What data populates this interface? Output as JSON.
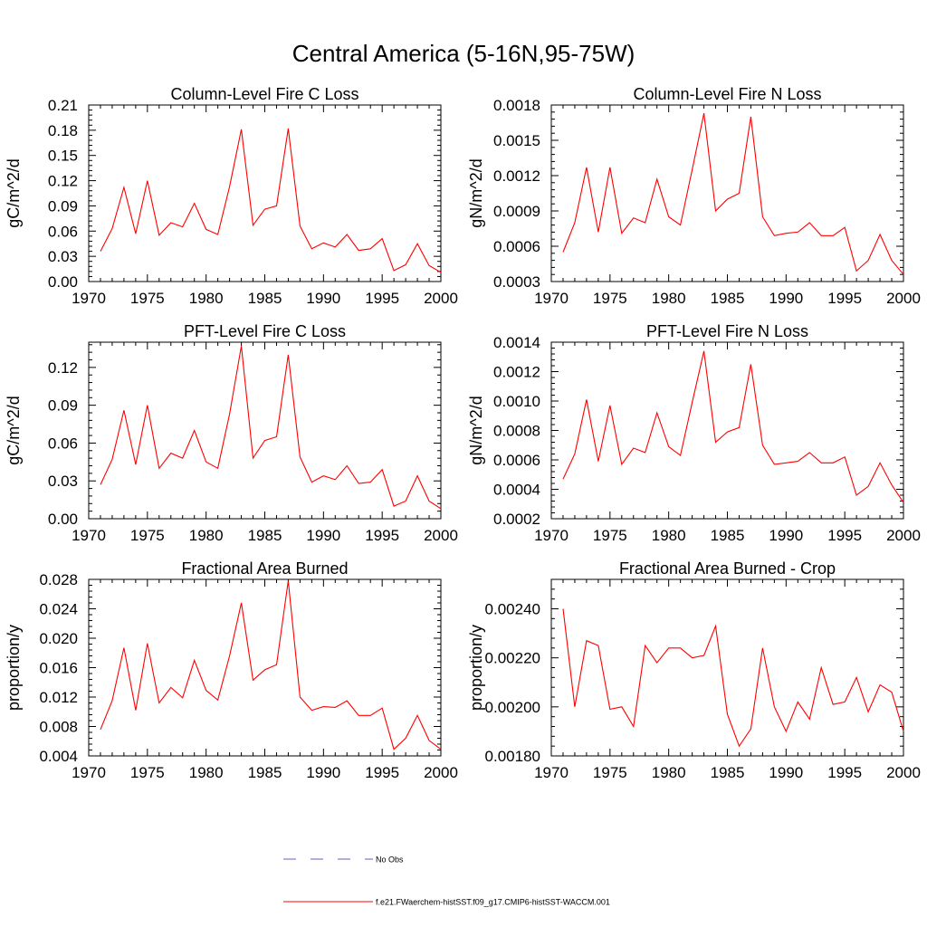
{
  "figure": {
    "title": "Central America (5-16N,95-75W)"
  },
  "chart_data": [
    {
      "type": "line",
      "title": "Column-Level Fire C Loss",
      "ylabel": "gC/m^2/d",
      "xlim": [
        1970,
        2000
      ],
      "ylim": [
        0.0,
        0.21
      ],
      "xticks": [
        1970,
        1975,
        1980,
        1985,
        1990,
        1995,
        2000
      ],
      "xtick_labels": [
        "1970",
        "1975",
        "1980",
        "1985",
        "1990",
        "1995",
        "2000"
      ],
      "yticks": [
        0.0,
        0.03,
        0.06,
        0.09,
        0.12,
        0.15,
        0.18,
        0.21
      ],
      "ytick_labels": [
        "0.00",
        "0.03",
        "0.06",
        "0.09",
        "0.12",
        "0.15",
        "0.18",
        "0.21"
      ],
      "x": [
        1971,
        1972,
        1973,
        1974,
        1975,
        1976,
        1977,
        1978,
        1979,
        1980,
        1981,
        1982,
        1983,
        1984,
        1985,
        1986,
        1987,
        1988,
        1989,
        1990,
        1991,
        1992,
        1993,
        1994,
        1995,
        1996,
        1997,
        1998,
        1999,
        2000
      ],
      "series": [
        {
          "name": "f.e21.FWaerchem-histSST.f09_g17.CMIP6-histSST-WACCM.001",
          "color": "#ff0000",
          "values": [
            0.036,
            0.063,
            0.112,
            0.057,
            0.12,
            0.055,
            0.07,
            0.065,
            0.093,
            0.062,
            0.056,
            0.113,
            0.181,
            0.067,
            0.086,
            0.09,
            0.182,
            0.066,
            0.039,
            0.046,
            0.041,
            0.056,
            0.037,
            0.039,
            0.051,
            0.013,
            0.02,
            0.045,
            0.019,
            0.011
          ]
        }
      ]
    },
    {
      "type": "line",
      "title": "Column-Level Fire N Loss",
      "ylabel": "gN/m^2/d",
      "xlim": [
        1970,
        2000
      ],
      "ylim": [
        0.0003,
        0.0018
      ],
      "xticks": [
        1970,
        1975,
        1980,
        1985,
        1990,
        1995,
        2000
      ],
      "xtick_labels": [
        "1970",
        "1975",
        "1980",
        "1985",
        "1990",
        "1995",
        "2000"
      ],
      "yticks": [
        0.0003,
        0.0006,
        0.0009,
        0.0012,
        0.0015,
        0.0018
      ],
      "ytick_labels": [
        "0.0003",
        "0.0006",
        "0.0009",
        "0.0012",
        "0.0015",
        "0.0018"
      ],
      "x": [
        1971,
        1972,
        1973,
        1974,
        1975,
        1976,
        1977,
        1978,
        1979,
        1980,
        1981,
        1982,
        1983,
        1984,
        1985,
        1986,
        1987,
        1988,
        1989,
        1990,
        1991,
        1992,
        1993,
        1994,
        1995,
        1996,
        1997,
        1998,
        1999,
        2000
      ],
      "series": [
        {
          "name": "f.e21.FWaerchem-histSST.f09_g17.CMIP6-histSST-WACCM.001",
          "color": "#ff0000",
          "values": [
            0.00055,
            0.0008,
            0.00127,
            0.00072,
            0.00127,
            0.00071,
            0.00084,
            0.0008,
            0.00117,
            0.00085,
            0.00078,
            0.00125,
            0.00173,
            0.0009,
            0.001,
            0.00105,
            0.0017,
            0.00085,
            0.00069,
            0.00071,
            0.00072,
            0.0008,
            0.00069,
            0.00069,
            0.00076,
            0.00039,
            0.00048,
            0.0007,
            0.00048,
            0.00036
          ]
        }
      ]
    },
    {
      "type": "line",
      "title": "PFT-Level Fire C Loss",
      "ylabel": "gC/m^2/d",
      "xlim": [
        1970,
        2000
      ],
      "ylim": [
        0.0,
        0.14
      ],
      "xticks": [
        1970,
        1975,
        1980,
        1985,
        1990,
        1995,
        2000
      ],
      "xtick_labels": [
        "1970",
        "1975",
        "1980",
        "1985",
        "1990",
        "1995",
        "2000"
      ],
      "yticks": [
        0.0,
        0.03,
        0.06,
        0.09,
        0.12
      ],
      "ytick_labels": [
        "0.00",
        "0.03",
        "0.06",
        "0.09",
        "0.12"
      ],
      "x": [
        1971,
        1972,
        1973,
        1974,
        1975,
        1976,
        1977,
        1978,
        1979,
        1980,
        1981,
        1982,
        1983,
        1984,
        1985,
        1986,
        1987,
        1988,
        1989,
        1990,
        1991,
        1992,
        1993,
        1994,
        1995,
        1996,
        1997,
        1998,
        1999,
        2000
      ],
      "series": [
        {
          "name": "f.e21.FWaerchem-histSST.f09_g17.CMIP6-histSST-WACCM.001",
          "color": "#ff0000",
          "values": [
            0.027,
            0.047,
            0.086,
            0.043,
            0.09,
            0.04,
            0.052,
            0.048,
            0.07,
            0.045,
            0.04,
            0.083,
            0.137,
            0.048,
            0.062,
            0.065,
            0.13,
            0.049,
            0.029,
            0.034,
            0.031,
            0.042,
            0.028,
            0.029,
            0.039,
            0.01,
            0.014,
            0.034,
            0.014,
            0.008
          ]
        }
      ]
    },
    {
      "type": "line",
      "title": "PFT-Level Fire N Loss",
      "ylabel": "gN/m^2/d",
      "xlim": [
        1970,
        2000
      ],
      "ylim": [
        0.0002,
        0.0014
      ],
      "xticks": [
        1970,
        1975,
        1980,
        1985,
        1990,
        1995,
        2000
      ],
      "xtick_labels": [
        "1970",
        "1975",
        "1980",
        "1985",
        "1990",
        "1995",
        "2000"
      ],
      "yticks": [
        0.0002,
        0.0004,
        0.0006,
        0.0008,
        0.001,
        0.0012,
        0.0014
      ],
      "ytick_labels": [
        "0.0002",
        "0.0004",
        "0.0006",
        "0.0008",
        "0.0010",
        "0.0012",
        "0.0014"
      ],
      "x": [
        1971,
        1972,
        1973,
        1974,
        1975,
        1976,
        1977,
        1978,
        1979,
        1980,
        1981,
        1982,
        1983,
        1984,
        1985,
        1986,
        1987,
        1988,
        1989,
        1990,
        1991,
        1992,
        1993,
        1994,
        1995,
        1996,
        1997,
        1998,
        1999,
        2000
      ],
      "series": [
        {
          "name": "f.e21.FWaerchem-histSST.f09_g17.CMIP6-histSST-WACCM.001",
          "color": "#ff0000",
          "values": [
            0.00047,
            0.00064,
            0.00101,
            0.00059,
            0.00097,
            0.00057,
            0.00068,
            0.00065,
            0.00092,
            0.00069,
            0.00063,
            0.00099,
            0.00134,
            0.00072,
            0.00079,
            0.00082,
            0.00125,
            0.0007,
            0.00057,
            0.00058,
            0.00059,
            0.00065,
            0.00058,
            0.00058,
            0.00062,
            0.00036,
            0.00042,
            0.00058,
            0.00043,
            0.00031
          ]
        }
      ]
    },
    {
      "type": "line",
      "title": "Fractional Area Burned",
      "ylabel": "proportion/y",
      "xlim": [
        1970,
        2000
      ],
      "ylim": [
        0.004,
        0.028
      ],
      "xticks": [
        1970,
        1975,
        1980,
        1985,
        1990,
        1995,
        2000
      ],
      "xtick_labels": [
        "1970",
        "1975",
        "1980",
        "1985",
        "1990",
        "1995",
        "2000"
      ],
      "yticks": [
        0.004,
        0.008,
        0.012,
        0.016,
        0.02,
        0.024,
        0.028
      ],
      "ytick_labels": [
        "0.004",
        "0.008",
        "0.012",
        "0.016",
        "0.020",
        "0.024",
        "0.028"
      ],
      "x": [
        1971,
        1972,
        1973,
        1974,
        1975,
        1976,
        1977,
        1978,
        1979,
        1980,
        1981,
        1982,
        1983,
        1984,
        1985,
        1986,
        1987,
        1988,
        1989,
        1990,
        1991,
        1992,
        1993,
        1994,
        1995,
        1996,
        1997,
        1998,
        1999,
        2000
      ],
      "series": [
        {
          "name": "f.e21.FWaerchem-histSST.f09_g17.CMIP6-histSST-WACCM.001",
          "color": "#ff0000",
          "values": [
            0.0076,
            0.0115,
            0.0187,
            0.0102,
            0.0193,
            0.0112,
            0.0133,
            0.0119,
            0.017,
            0.0129,
            0.0116,
            0.0176,
            0.0248,
            0.0143,
            0.0157,
            0.0164,
            0.0278,
            0.012,
            0.0102,
            0.0107,
            0.0106,
            0.0115,
            0.0095,
            0.0095,
            0.0105,
            0.0049,
            0.0064,
            0.0095,
            0.0061,
            0.0049
          ]
        }
      ]
    },
    {
      "type": "line",
      "title": "Fractional Area Burned - Crop",
      "ylabel": "proportion/y",
      "xlim": [
        1970,
        2000
      ],
      "ylim": [
        0.0018,
        0.00252
      ],
      "xticks": [
        1970,
        1975,
        1980,
        1985,
        1990,
        1995,
        2000
      ],
      "xtick_labels": [
        "1970",
        "1975",
        "1980",
        "1985",
        "1990",
        "1995",
        "2000"
      ],
      "yticks": [
        0.0018,
        0.002,
        0.0022,
        0.0024
      ],
      "ytick_labels": [
        "0.00180",
        "0.00200",
        "0.00220",
        "0.00240"
      ],
      "x": [
        1971,
        1972,
        1973,
        1974,
        1975,
        1976,
        1977,
        1978,
        1979,
        1980,
        1981,
        1982,
        1983,
        1984,
        1985,
        1986,
        1987,
        1988,
        1989,
        1990,
        1991,
        1992,
        1993,
        1994,
        1995,
        1996,
        1997,
        1998,
        1999,
        2000
      ],
      "series": [
        {
          "name": "f.e21.FWaerchem-histSST.f09_g17.CMIP6-histSST-WACCM.001",
          "color": "#ff0000",
          "values": [
            0.0024,
            0.002,
            0.00227,
            0.00225,
            0.00199,
            0.002,
            0.00192,
            0.00225,
            0.00218,
            0.00224,
            0.00224,
            0.0022,
            0.00221,
            0.00233,
            0.00197,
            0.00184,
            0.00191,
            0.00224,
            0.002,
            0.0019,
            0.00202,
            0.00195,
            0.00216,
            0.00201,
            0.00202,
            0.00212,
            0.00198,
            0.00209,
            0.00206,
            0.0019
          ]
        }
      ]
    }
  ],
  "legend": {
    "entries": [
      {
        "label": "No Obs",
        "color": "#6060c0",
        "style": "dashed"
      },
      {
        "label": "f.e21.FWaerchem-histSST.f09_g17.CMIP6-histSST-WACCM.001",
        "color": "#ff0000",
        "style": "solid"
      }
    ]
  }
}
